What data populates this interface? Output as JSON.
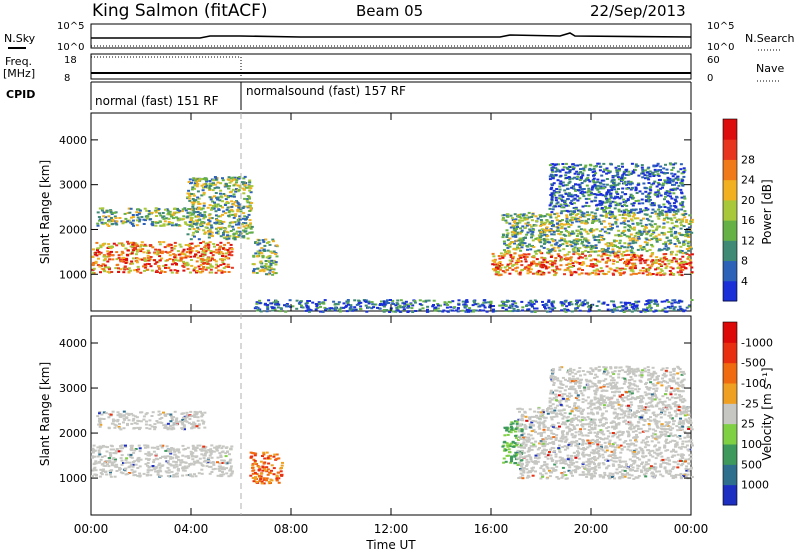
{
  "header": {
    "station": "King Salmon (fitACF)",
    "beam": "Beam 05",
    "date": "22/Sep/2013"
  },
  "top_panels": {
    "nsky_label": "N.Sky",
    "nsky_ticks": [
      "10^5",
      "10^0"
    ],
    "nsearch_label": "N.Search",
    "nsearch_ticks": [
      "10^5",
      "10^0"
    ],
    "freq_label_line1": "Freq.",
    "freq_label_line2": "[MHz]",
    "freq_ticks": [
      "18",
      "8"
    ],
    "nave_label": "Nave",
    "nave_ticks": [
      "60",
      "0"
    ],
    "cpid_label": "CPID",
    "cpid_segments": [
      {
        "label": "normal (fast) 151 RF",
        "start_hour": 0,
        "end_hour": 6
      },
      {
        "label": "normalsound (fast) 157 RF",
        "start_hour": 6,
        "end_hour": 24
      }
    ]
  },
  "chart_data": [
    {
      "type": "heatmap",
      "title": "",
      "xlabel": "",
      "ylabel": "Slant Range [km]",
      "xlim_hours": [
        0,
        24
      ],
      "ylim_km": [
        180,
        4600
      ],
      "y_ticks": [
        1000,
        2000,
        3000,
        4000
      ],
      "colorbar": {
        "label": "Power [dB]",
        "ticks": [
          "4",
          "8",
          "12",
          "16",
          "20",
          "24",
          "28"
        ],
        "colors": [
          "#1a2fd8",
          "#2c62b8",
          "#3f8a74",
          "#65b146",
          "#a8c83a",
          "#f0b020",
          "#f07a18",
          "#e8361e",
          "#dd0d0d"
        ]
      },
      "echo_regions": [
        {
          "t0": 0.0,
          "t1": 5.6,
          "r0": 1050,
          "r1": 1750,
          "level": "high"
        },
        {
          "t0": 0.2,
          "t1": 4.5,
          "r0": 2100,
          "r1": 2500,
          "level": "mid"
        },
        {
          "t0": 3.8,
          "t1": 6.4,
          "r0": 1800,
          "r1": 3200,
          "level": "mid"
        },
        {
          "t0": 6.4,
          "t1": 7.4,
          "r0": 1000,
          "r1": 1800,
          "level": "mid"
        },
        {
          "t0": 16.0,
          "t1": 24.0,
          "r0": 1000,
          "r1": 1500,
          "level": "high"
        },
        {
          "t0": 16.4,
          "t1": 24.0,
          "r0": 1500,
          "r1": 2400,
          "level": "mid"
        },
        {
          "t0": 18.3,
          "t1": 23.7,
          "r0": 2400,
          "r1": 3500,
          "level": "low"
        },
        {
          "t0": 6.5,
          "t1": 24.0,
          "r0": 180,
          "r1": 450,
          "level": "low"
        }
      ]
    },
    {
      "type": "heatmap",
      "title": "",
      "xlabel": "Time UT",
      "ylabel": "Slant Range [km]",
      "xlim_hours": [
        0,
        24
      ],
      "ylim_km": [
        180,
        4600
      ],
      "y_ticks": [
        1000,
        2000,
        3000,
        4000
      ],
      "x_tick_labels": [
        "00:00",
        "04:00",
        "08:00",
        "12:00",
        "16:00",
        "20:00",
        "00:00"
      ],
      "colorbar": {
        "label": "Velocity [m s⁻¹]",
        "ticks": [
          "1000",
          "500",
          "100",
          "25",
          "-25",
          "-100",
          "-500",
          "-1000"
        ],
        "colors": [
          "#1c2fc0",
          "#2e6f8e",
          "#3d9a5c",
          "#7fd042",
          "#c6c6c2",
          "#f0a020",
          "#f06a10",
          "#e83010",
          "#dd0808"
        ]
      },
      "echo_regions": [
        {
          "t0": 0.0,
          "t1": 5.6,
          "r0": 1050,
          "r1": 1750,
          "level": "ground"
        },
        {
          "t0": 0.2,
          "t1": 4.5,
          "r0": 2100,
          "r1": 2500,
          "level": "ground"
        },
        {
          "t0": 6.3,
          "t1": 7.6,
          "r0": 900,
          "r1": 1600,
          "level": "negative"
        },
        {
          "t0": 16.4,
          "t1": 17.2,
          "r0": 1300,
          "r1": 2300,
          "level": "positive"
        },
        {
          "t0": 17.0,
          "t1": 24.0,
          "r0": 1000,
          "r1": 2600,
          "level": "ground"
        },
        {
          "t0": 18.3,
          "t1": 23.7,
          "r0": 2600,
          "r1": 3500,
          "level": "ground"
        }
      ]
    }
  ]
}
